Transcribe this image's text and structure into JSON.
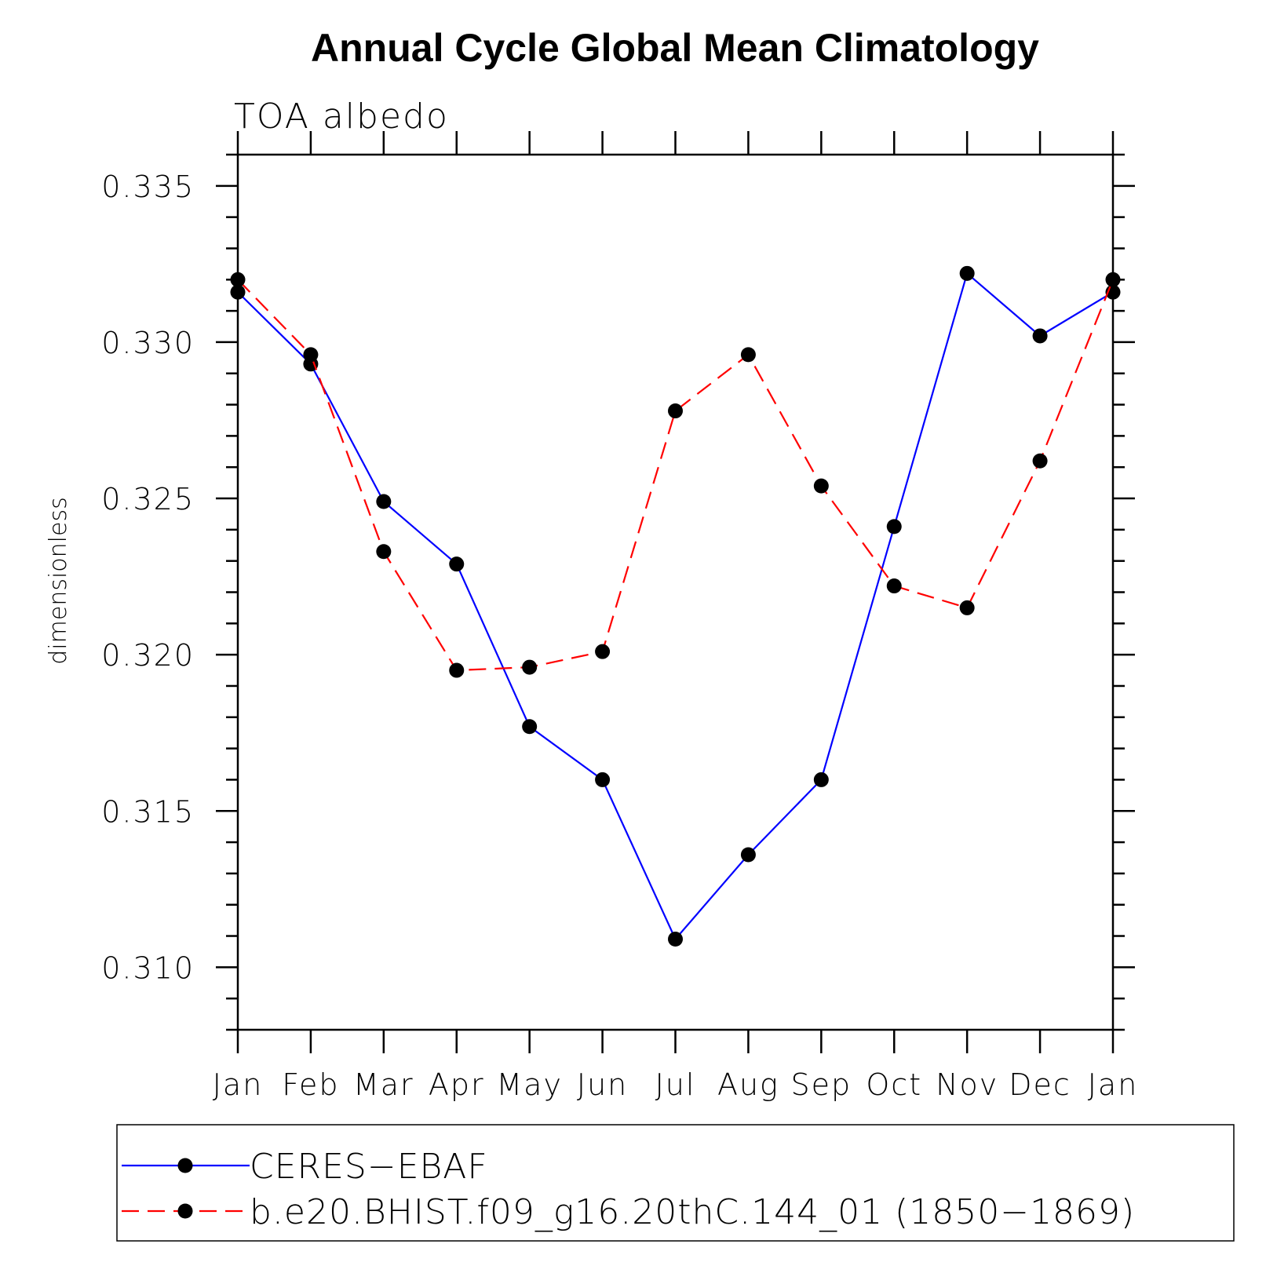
{
  "chart_data": {
    "type": "line",
    "title": "Annual Cycle Global Mean Climatology",
    "subtitle": "TOA albedo",
    "ylabel": "dimensionless",
    "xlabel": "",
    "categories": [
      "Jan",
      "Feb",
      "Mar",
      "Apr",
      "May",
      "Jun",
      "Jul",
      "Aug",
      "Sep",
      "Oct",
      "Nov",
      "Dec",
      "Jan"
    ],
    "ylim": [
      0.308,
      0.336
    ],
    "yticks": [
      "0.310",
      "0.315",
      "0.320",
      "0.325",
      "0.330",
      "0.335"
    ],
    "grid": false,
    "legend_position": "bottom",
    "series": [
      {
        "name": "CERES−EBAF",
        "color": "#0000ff",
        "dash": "solid",
        "marker": "filled-circle",
        "values": [
          0.3316,
          0.3293,
          0.3249,
          0.3229,
          0.3177,
          0.316,
          0.3109,
          0.3136,
          0.316,
          0.3241,
          0.3322,
          0.3302,
          0.3316
        ]
      },
      {
        "name": "b.e20.BHIST.f09_g16.20thC.144_01 (1850−1869)",
        "color": "#ff0000",
        "dash": "dashed",
        "marker": "filled-circle",
        "values": [
          0.332,
          0.3296,
          0.3233,
          0.3195,
          0.3196,
          0.3201,
          0.3278,
          0.3296,
          0.3254,
          0.3222,
          0.3215,
          0.3262,
          0.332
        ]
      }
    ]
  }
}
